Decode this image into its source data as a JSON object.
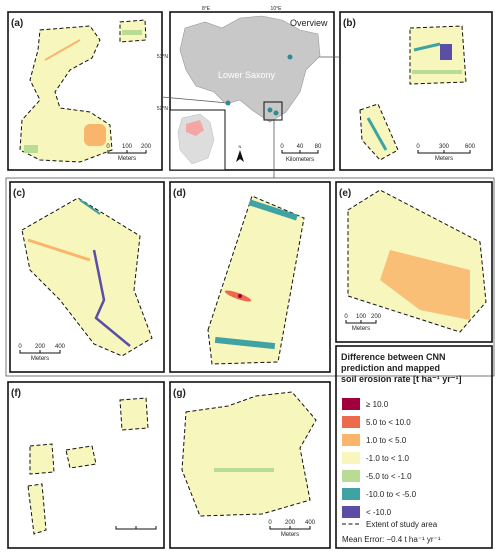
{
  "panels": {
    "a": {
      "label": "(a)",
      "scale": [
        0,
        100,
        200
      ],
      "unit": "Meters"
    },
    "b": {
      "label": "(b)",
      "scale": [
        0,
        300,
        600
      ],
      "unit": "Meters"
    },
    "c": {
      "label": "(c)",
      "scale": [
        0,
        200,
        400
      ],
      "unit": "Meters"
    },
    "d": {
      "label": "(d)"
    },
    "e": {
      "label": "(e)",
      "scale": [
        0,
        100,
        200
      ],
      "unit": "Meters"
    },
    "f": {
      "label": "(f)"
    },
    "g": {
      "label": "(g)",
      "scale": [
        0,
        200,
        400
      ],
      "unit": "Meters"
    }
  },
  "overview": {
    "title": "Overview",
    "region": "Lower Saxony",
    "lon": [
      "8°E",
      "10°E"
    ],
    "lat": [
      "53°N",
      "52°N"
    ],
    "north": "N",
    "scale": [
      0,
      40,
      80
    ],
    "unit": "Kilometers"
  },
  "legend": {
    "title": [
      "Difference between CNN",
      "prediction and mapped",
      "soil erosion rate [t ha⁻¹ yr⁻¹]"
    ],
    "items": [
      {
        "label": "≥ 10.0",
        "color": "#a0003c"
      },
      {
        "label": "5.0 to < 10.0",
        "color": "#ee6a4c"
      },
      {
        "label": "1.0 to < 5.0",
        "color": "#f9b56b"
      },
      {
        "label": "-1.0 to < 1.0",
        "color": "#f7f7bd"
      },
      {
        "label": "-5.0 to < -1.0",
        "color": "#b9dc95"
      },
      {
        "label": "-10.0 to < -5.0",
        "color": "#3fa3a3"
      },
      {
        "label": "< -10.0",
        "color": "#5a4ea6"
      }
    ],
    "extent": "Extent of study area",
    "mean_error": "Mean Error: −0.4 t ha⁻¹ yr⁻¹"
  }
}
